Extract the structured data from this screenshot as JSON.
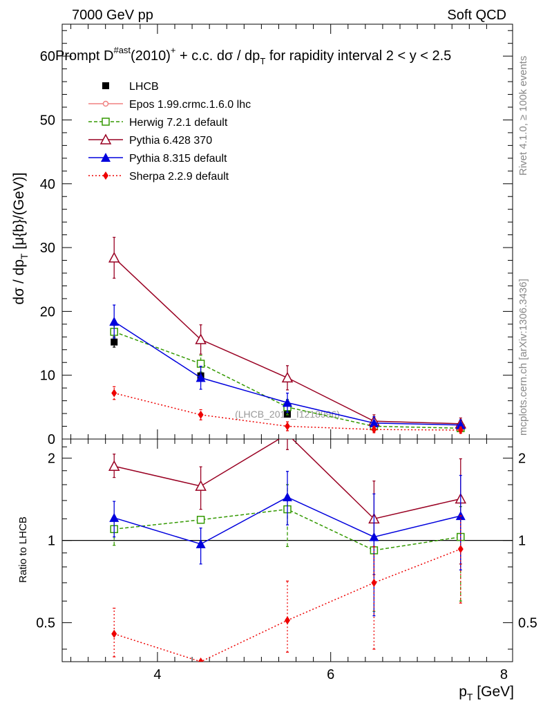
{
  "header": {
    "energy_label": "7000 GeV pp",
    "process_label": "Soft QCD",
    "title_main": "Prompt D",
    "title_sup": "#ast",
    "title_after": "(2010)",
    "title_plus": "+",
    "title_rest": " + c.c.  dσ / dp",
    "title_sub": "T",
    "title_tail": " for rapidity interval 2 < y < 2.5",
    "side_rivet": "Rivet 4.1.0, ≥ 100k events",
    "side_mcplots": "mcplots.cern.ch [arXiv:1306.3436]",
    "watermark": "(LHCB_2013_I1218996)"
  },
  "axes": {
    "ylabel_main": "dσ / dp",
    "ylabel_sub": "T",
    "ylabel_unit": " [μ{b}/(GeV)]",
    "ylabel_ratio": "Ratio to LHCB",
    "xlabel_main": "p",
    "xlabel_sub": "T",
    "xlabel_unit": " [GeV]"
  },
  "colors": {
    "data": "#000000",
    "epos": "#f08080",
    "herwig": "#339900",
    "pythia6": "#990022",
    "pythia8": "#0000dd",
    "sherpa": "#ee0000"
  },
  "chart_data": [
    {
      "type": "line",
      "panel": "main",
      "xlim": [
        2.9,
        8.1
      ],
      "ylim": [
        0,
        65
      ],
      "xticks": [
        4,
        6,
        8
      ],
      "yticks": [
        0,
        10,
        20,
        30,
        40,
        50,
        60
      ],
      "legend_position": "top-left",
      "series": [
        {
          "key": "lhcb",
          "name": "LHCB",
          "style": "data",
          "x": [
            3.5,
            4.5,
            5.5
          ],
          "y": [
            15.2,
            9.9,
            3.9
          ],
          "err": [
            0.8,
            0.6,
            0.4
          ]
        },
        {
          "key": "epos",
          "name": "Epos 1.99.crmc.1.6.0 lhc",
          "style": "epos",
          "x": [],
          "y": [],
          "err": []
        },
        {
          "key": "herwig",
          "name": "Herwig 7.2.1 default",
          "style": "herwig",
          "x": [
            3.5,
            4.5,
            5.5,
            6.5,
            7.5
          ],
          "y": [
            16.8,
            11.8,
            5.0,
            2.0,
            1.7
          ],
          "err": [
            1.0,
            1.3,
            1.2,
            0.6,
            0.4
          ]
        },
        {
          "key": "pythia6",
          "name": "Pythia 6.428 370",
          "style": "pythia6",
          "x": [
            3.5,
            4.5,
            5.5,
            6.5,
            7.5
          ],
          "y": [
            28.4,
            15.6,
            9.6,
            2.8,
            2.4
          ],
          "err": [
            3.2,
            2.3,
            1.9,
            1.0,
            0.9
          ]
        },
        {
          "key": "pythia8",
          "name": "Pythia 8.315 default",
          "style": "pythia8",
          "x": [
            3.5,
            4.5,
            5.5,
            6.5,
            7.5
          ],
          "y": [
            18.4,
            9.6,
            5.7,
            2.5,
            2.2
          ],
          "err": [
            2.6,
            1.8,
            1.5,
            1.0,
            0.8
          ]
        },
        {
          "key": "sherpa",
          "name": "Sherpa 2.2.9 default",
          "style": "sherpa",
          "x": [
            3.5,
            4.5,
            5.5,
            6.5,
            7.5
          ],
          "y": [
            7.2,
            3.8,
            2.0,
            1.5,
            1.4
          ],
          "err": [
            1.0,
            0.8,
            0.7,
            0.5,
            0.5
          ]
        }
      ]
    },
    {
      "type": "line",
      "panel": "ratio",
      "ylabel": "Ratio to LHCB",
      "xlim": [
        2.9,
        8.1
      ],
      "ylim": [
        0.36,
        2.35
      ],
      "yscale": "log",
      "yticks": [
        0.5,
        1,
        2
      ],
      "ytick_labels": [
        "0.5",
        "1",
        "2"
      ],
      "series": [
        {
          "key": "herwig",
          "x": [
            3.5,
            4.5,
            5.5,
            6.5,
            7.5
          ],
          "y": [
            1.1,
            1.19,
            1.3,
            0.92,
            1.03
          ],
          "err_lo": [
            0.14,
            0.0,
            0.35,
            0.37,
            0.43
          ],
          "err_hi": [
            0.1,
            0.0,
            0.3,
            0.0,
            0.3
          ]
        },
        {
          "key": "pythia6",
          "x": [
            3.5,
            4.5,
            5.5,
            6.5,
            7.5
          ],
          "y": [
            1.87,
            1.58,
            2.45,
            1.2,
            1.42
          ],
          "err_lo": [
            0.17,
            0.28,
            0.3,
            0.45,
            0.6
          ],
          "err_hi": [
            0.2,
            0.28,
            0.3,
            0.45,
            0.57
          ]
        },
        {
          "key": "pythia8",
          "x": [
            3.5,
            4.5,
            5.5,
            6.5,
            7.5
          ],
          "y": [
            1.21,
            0.97,
            1.44,
            1.03,
            1.23
          ],
          "err_lo": [
            0.18,
            0.15,
            0.3,
            0.5,
            0.45
          ],
          "err_hi": [
            0.18,
            0.14,
            0.35,
            0.45,
            0.5
          ]
        },
        {
          "key": "sherpa",
          "x": [
            3.5,
            4.5,
            5.5,
            6.5,
            7.5
          ],
          "y": [
            0.455,
            0.36,
            0.51,
            0.7,
            0.93
          ],
          "err_lo": [
            0.08,
            0.0,
            0.12,
            0.3,
            0.34
          ],
          "err_hi": [
            0.11,
            0.0,
            0.2,
            0.25,
            0.3
          ]
        }
      ]
    }
  ]
}
